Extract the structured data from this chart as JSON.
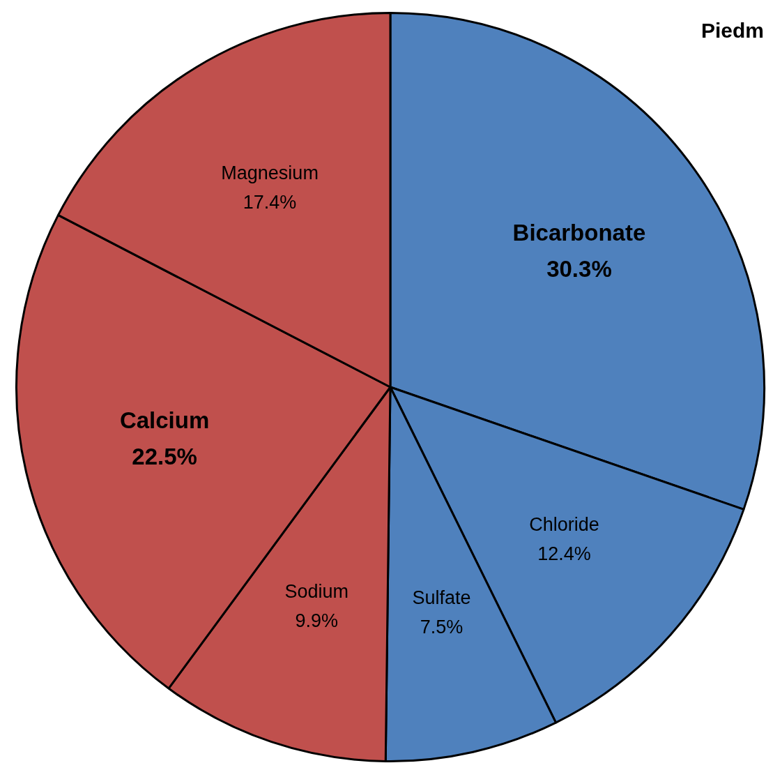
{
  "chart_data": {
    "type": "pie",
    "title": "Piedm",
    "categories": [
      "Bicarbonate",
      "Chloride",
      "Sulfate",
      "Sodium",
      "Calcium",
      "Magnesium"
    ],
    "values": [
      30.3,
      12.4,
      7.5,
      9.9,
      22.5,
      17.4
    ],
    "colors": [
      "#4f81bd",
      "#4f81bd",
      "#4f81bd",
      "#c0504d",
      "#c0504d",
      "#c0504d"
    ],
    "value_labels": [
      "30.3%",
      "12.4%",
      "7.5%",
      "9.9%",
      "22.5%",
      "17.4%"
    ],
    "legend": false
  }
}
